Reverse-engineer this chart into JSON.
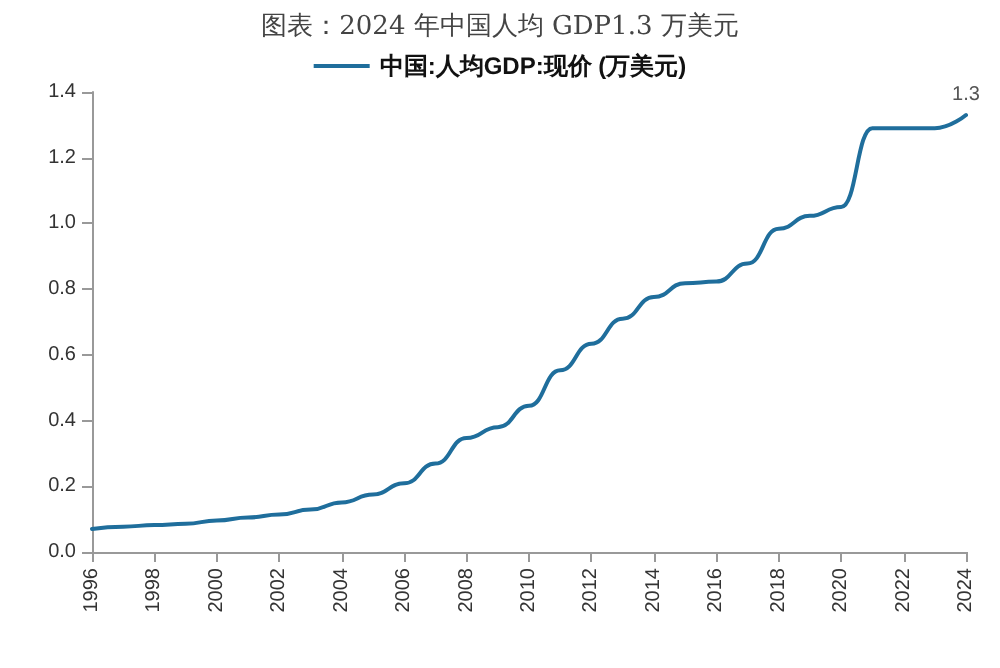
{
  "chart_data": {
    "type": "line",
    "title": "图表：2024 年中国人均 GDP1.3 万美元",
    "x": [
      1996,
      1997,
      1998,
      1999,
      2000,
      2001,
      2002,
      2003,
      2004,
      2005,
      2006,
      2007,
      2008,
      2009,
      2010,
      2011,
      2012,
      2013,
      2014,
      2015,
      2016,
      2017,
      2018,
      2019,
      2020,
      2021,
      2022,
      2023,
      2024
    ],
    "series": [
      {
        "name": "中国:人均GDP:现价 (万美元)",
        "color": "#1f6e9c",
        "values": [
          0.07,
          0.077,
          0.082,
          0.086,
          0.096,
          0.105,
          0.114,
          0.129,
          0.151,
          0.175,
          0.209,
          0.269,
          0.347,
          0.38,
          0.445,
          0.553,
          0.634,
          0.71,
          0.776,
          0.818,
          0.823,
          0.878,
          0.984,
          1.023,
          1.05,
          1.29,
          1.29,
          1.29,
          1.33
        ],
        "value_labels": [
          null,
          null,
          null,
          null,
          null,
          null,
          null,
          null,
          null,
          null,
          null,
          null,
          null,
          null,
          null,
          null,
          null,
          null,
          null,
          null,
          null,
          null,
          null,
          null,
          null,
          null,
          null,
          null,
          "1.3"
        ]
      }
    ],
    "xlim": [
      1996,
      2024
    ],
    "xticks": [
      1996,
      1998,
      2000,
      2002,
      2004,
      2006,
      2008,
      2010,
      2012,
      2014,
      2016,
      2018,
      2020,
      2022,
      2024
    ],
    "ylim": [
      0,
      1.4
    ],
    "yticks": [
      {
        "value": 0,
        "label": "0.0"
      },
      0.2,
      0.4,
      0.6,
      0.8,
      {
        "value": 1,
        "label": "1.0"
      },
      1.2,
      1.4
    ],
    "grid": false,
    "legend": "top",
    "marker": "none",
    "line_style": "solid"
  }
}
